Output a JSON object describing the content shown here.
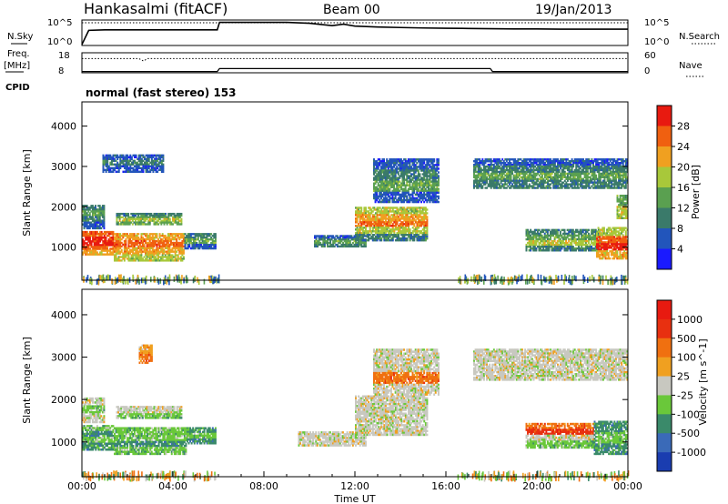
{
  "header": {
    "station": "Hankasalmi (fitACF)",
    "beam": "Beam 00",
    "date": "19/Jan/2013"
  },
  "top_panels": {
    "nsky_label": "N.Sky",
    "nsearch_label": "N.Search",
    "freq_label_1": "Freq.",
    "freq_label_2": "[MHz]",
    "nave_label": "Nave",
    "cpid_label": "CPID",
    "cpid_text": "normal (fast stereo) 153",
    "noise_left_ticks": [
      "10^5",
      "10^0"
    ],
    "noise_right_ticks": [
      "10^5",
      "10^0"
    ],
    "freq_left_ticks": [
      "18",
      "8"
    ],
    "freq_right_ticks": [
      "60",
      "0"
    ]
  },
  "colors": {
    "power": [
      "#1a1aff",
      "#2255bb",
      "#3a7a6a",
      "#5aa050",
      "#a8c83a",
      "#f0a020",
      "#f06010",
      "#e81a10"
    ],
    "velocity": [
      "#1a3db0",
      "#3a6ab8",
      "#3a8a6a",
      "#6ac83a",
      "#c8c8c0",
      "#f0a020",
      "#f07010",
      "#e83010",
      "#e81a10"
    ]
  },
  "chart_data": [
    {
      "type": "line",
      "title": "Hankasalmi (fitACF)",
      "subtitle": "Beam 00",
      "series": [
        {
          "name": "N.Sky",
          "x": [
            0,
            0.3,
            1,
            2,
            3,
            4,
            5,
            5.95,
            6.05,
            7,
            8,
            9,
            10,
            11,
            11.5,
            12,
            13,
            14,
            15,
            16,
            17,
            18,
            19,
            20,
            21,
            22,
            23,
            24
          ],
          "y": [
            0.2,
            3.2,
            3.3,
            3.3,
            3.3,
            3.3,
            3.3,
            3.3,
            4.9,
            4.9,
            4.9,
            4.9,
            4.7,
            4.2,
            4.5,
            4.1,
            3.9,
            3.8,
            3.7,
            3.65,
            3.6,
            3.55,
            3.5,
            3.5,
            3.45,
            3.45,
            3.45,
            3.45
          ]
        },
        {
          "name": "N.Search",
          "x": [
            0,
            2,
            4,
            6,
            8,
            10,
            12,
            14,
            16,
            18,
            20,
            22,
            24
          ],
          "y": [
            5,
            5,
            5,
            5,
            5,
            5,
            5,
            5,
            5,
            5,
            5,
            5,
            5
          ]
        }
      ],
      "xlim": [
        0,
        24
      ],
      "ylim": [
        0,
        5
      ]
    },
    {
      "type": "line",
      "series": [
        {
          "name": "Freq.",
          "x": [
            0,
            5.95,
            6.05,
            17.95,
            18.05,
            24
          ],
          "y": [
            8.2,
            8.2,
            9.8,
            9.8,
            8.2,
            8.2
          ]
        },
        {
          "name": "Nave",
          "x": [
            0,
            2.5,
            2.7,
            2.9,
            6,
            8,
            12,
            16,
            20,
            24
          ],
          "y": [
            44,
            44,
            36,
            44,
            44,
            44,
            44,
            44,
            44,
            44
          ]
        }
      ],
      "xlim": [
        0,
        24
      ],
      "ylim": [
        8,
        18
      ]
    },
    {
      "type": "heatmap",
      "ylabel": "Slant Range [km]",
      "colorbar_label": "Power [dB]",
      "colorbar_ticks": [
        "28",
        "24",
        "20",
        "16",
        "12",
        "8",
        "4"
      ],
      "xlim": [
        0,
        24
      ],
      "ylim": [
        180,
        4600
      ],
      "yticks": [
        "4000",
        "3000",
        "2000",
        "1000"
      ],
      "regions": [
        {
          "x0": 0.0,
          "x1": 1.4,
          "y0": 800,
          "y1": 1400,
          "levels": [
            6,
            7,
            7,
            6,
            5
          ]
        },
        {
          "x0": 1.4,
          "x1": 4.5,
          "y0": 650,
          "y1": 1350,
          "levels": [
            5,
            6,
            5,
            4
          ]
        },
        {
          "x0": 4.5,
          "x1": 5.9,
          "y0": 950,
          "y1": 1350,
          "levels": [
            2,
            3,
            1
          ]
        },
        {
          "x0": 0.0,
          "x1": 1.0,
          "y0": 1450,
          "y1": 2050,
          "levels": [
            2,
            3,
            2,
            1
          ]
        },
        {
          "x0": 1.5,
          "x1": 4.4,
          "y0": 1550,
          "y1": 1850,
          "levels": [
            2,
            3,
            4,
            3
          ]
        },
        {
          "x0": 0.9,
          "x1": 3.6,
          "y0": 2850,
          "y1": 3300,
          "levels": [
            1,
            2,
            1
          ]
        },
        {
          "x0": 10.2,
          "x1": 12.5,
          "y0": 1000,
          "y1": 1300,
          "levels": [
            1,
            2,
            3,
            2
          ]
        },
        {
          "x0": 12.0,
          "x1": 15.2,
          "y0": 1150,
          "y1": 2000,
          "levels": [
            4,
            5,
            6,
            4,
            2
          ]
        },
        {
          "x0": 12.8,
          "x1": 15.7,
          "y0": 2100,
          "y1": 3200,
          "levels": [
            1,
            2,
            3,
            1
          ]
        },
        {
          "x0": 17.2,
          "x1": 24.0,
          "y0": 2450,
          "y1": 3200,
          "levels": [
            1,
            2,
            3,
            2
          ]
        },
        {
          "x0": 19.5,
          "x1": 22.8,
          "y0": 900,
          "y1": 1450,
          "levels": [
            2,
            3,
            4,
            2
          ]
        },
        {
          "x0": 22.6,
          "x1": 24.0,
          "y0": 700,
          "y1": 1500,
          "levels": [
            4,
            6,
            7,
            5
          ]
        },
        {
          "x0": 23.5,
          "x1": 24.0,
          "y0": 1700,
          "y1": 2300,
          "levels": [
            3,
            4
          ]
        }
      ],
      "ground_scatter_bands": [
        {
          "x0": 0,
          "x1": 6,
          "y": 250
        },
        {
          "x0": 16.5,
          "x1": 24,
          "y": 250
        }
      ]
    },
    {
      "type": "heatmap",
      "ylabel": "Slant Range [km]",
      "xlabel": "Time UT",
      "colorbar_label": "Velocity [m s^-1]",
      "colorbar_ticks": [
        "1000",
        "500",
        "100",
        "25",
        "-25",
        "-100",
        "-500",
        "-1000"
      ],
      "xticks": [
        "00:00",
        "04:00",
        "08:00",
        "12:00",
        "16:00",
        "20:00",
        "00:00"
      ],
      "xlim": [
        0,
        24
      ],
      "ylim": [
        180,
        4600
      ],
      "yticks": [
        "4000",
        "3000",
        "2000",
        "1000"
      ],
      "regions": [
        {
          "x0": 0.0,
          "x1": 1.4,
          "y0": 800,
          "y1": 1400,
          "levels": [
            3,
            2,
            3,
            2
          ]
        },
        {
          "x0": 1.4,
          "x1": 4.6,
          "y0": 700,
          "y1": 1350,
          "levels": [
            3,
            3,
            2,
            3
          ]
        },
        {
          "x0": 4.6,
          "x1": 5.9,
          "y0": 950,
          "y1": 1350,
          "levels": [
            2,
            3,
            2
          ]
        },
        {
          "x0": 0.0,
          "x1": 1.0,
          "y0": 1450,
          "y1": 2050,
          "levels": [
            4,
            3,
            4
          ]
        },
        {
          "x0": 1.5,
          "x1": 4.4,
          "y0": 1550,
          "y1": 1850,
          "levels": [
            4,
            4,
            3
          ]
        },
        {
          "x0": 2.5,
          "x1": 3.1,
          "y0": 2850,
          "y1": 3300,
          "levels": [
            5,
            6
          ]
        },
        {
          "x0": 9.5,
          "x1": 12.5,
          "y0": 900,
          "y1": 1250,
          "levels": [
            4,
            4,
            4
          ]
        },
        {
          "x0": 12.0,
          "x1": 15.2,
          "y0": 1150,
          "y1": 2100,
          "levels": [
            4,
            4,
            4,
            4
          ]
        },
        {
          "x0": 12.8,
          "x1": 15.7,
          "y0": 2100,
          "y1": 3200,
          "levels": [
            4,
            4,
            6,
            4
          ]
        },
        {
          "x0": 17.2,
          "x1": 24.0,
          "y0": 2450,
          "y1": 3200,
          "levels": [
            4,
            4,
            4
          ]
        },
        {
          "x0": 19.5,
          "x1": 22.5,
          "y0": 850,
          "y1": 1450,
          "levels": [
            6,
            7,
            4,
            3
          ]
        },
        {
          "x0": 22.5,
          "x1": 24.0,
          "y0": 700,
          "y1": 1500,
          "levels": [
            2,
            3,
            2
          ]
        }
      ],
      "ground_scatter_bands": [
        {
          "x0": 0,
          "x1": 6,
          "y": 250
        },
        {
          "x0": 16.5,
          "x1": 24,
          "y": 250
        }
      ]
    }
  ]
}
